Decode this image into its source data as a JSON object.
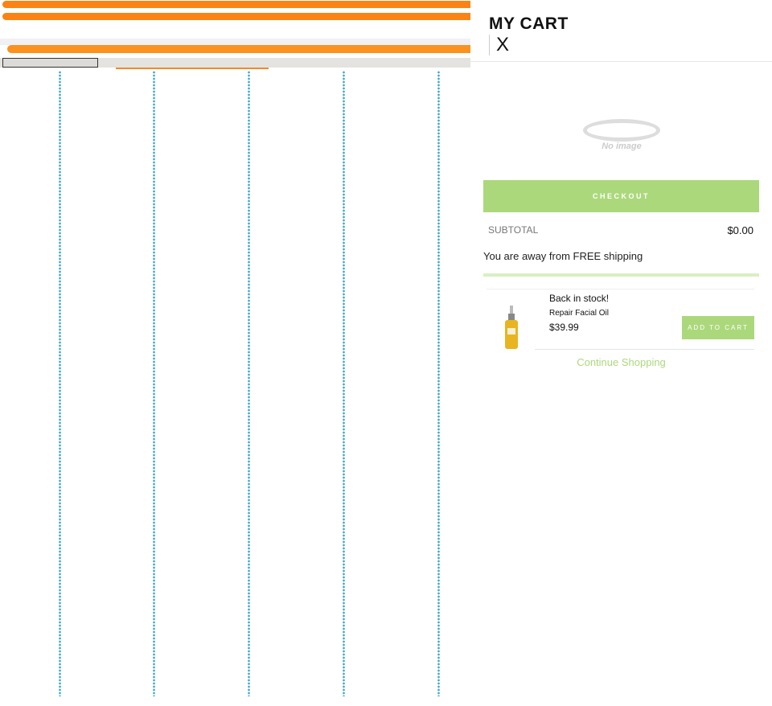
{
  "cart": {
    "title": "MY CART",
    "close_label": "X",
    "no_image_text": "No image",
    "checkout_label": "CHECKOUT",
    "subtotal_label": "SUBTOTAL",
    "subtotal_value": "$0.00",
    "shipping_message": "You are away from FREE shipping",
    "shipping_progress": 0,
    "upsell": {
      "badge": "Back in stock!",
      "product_name": "Repair Facial Oil",
      "price": "$39.99",
      "add_to_cart_label": "ADD TO CART"
    },
    "continue_label": "Continue Shopping"
  },
  "colors": {
    "accent": "#acd87c",
    "background_orange": "#fb8313"
  }
}
